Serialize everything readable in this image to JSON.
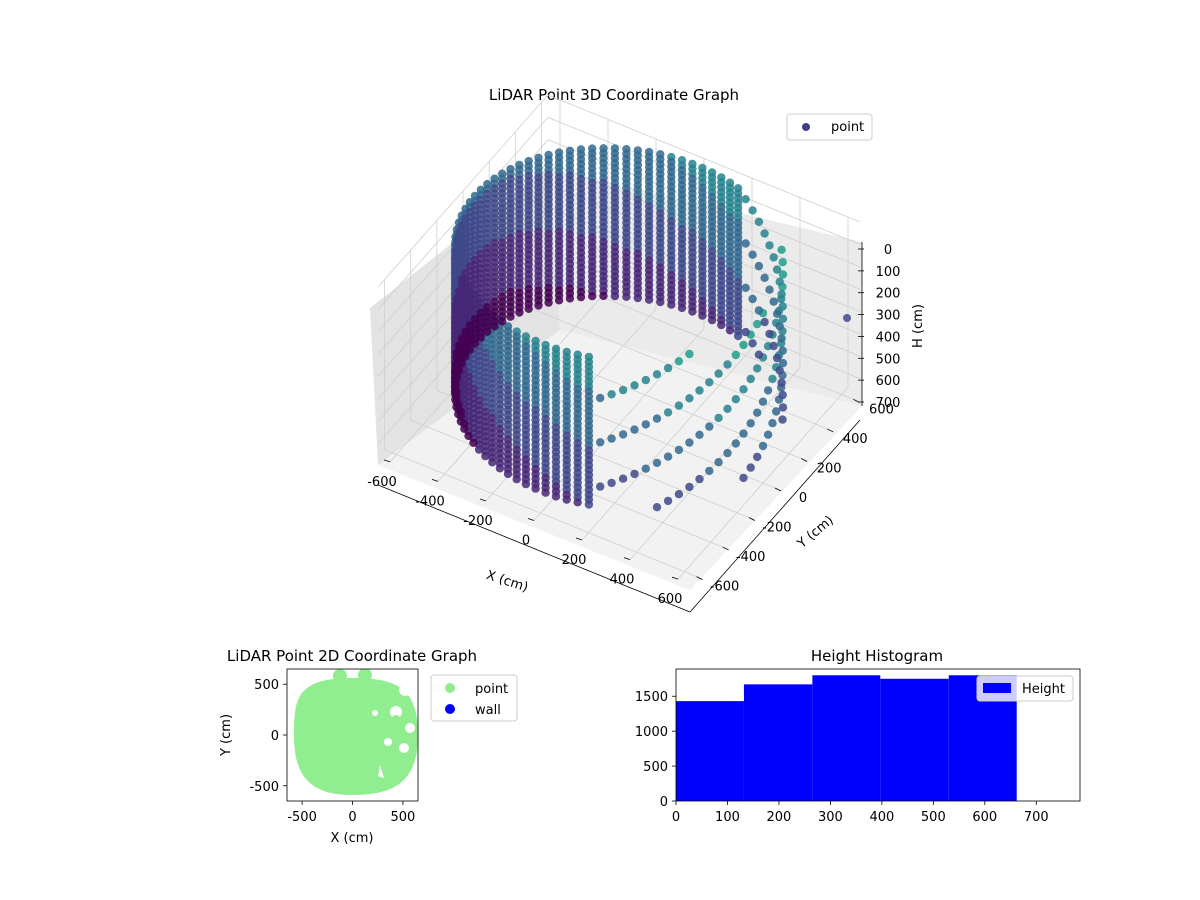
{
  "chart_data": [
    {
      "type": "scatter3d",
      "title": "LiDAR Point 3D Coordinate Graph",
      "xlabel": "X (cm)",
      "ylabel": "Y (cm)",
      "zlabel": "H (cm)",
      "xticks": [
        "-600",
        "-400",
        "-200",
        "0",
        "200",
        "400",
        "600"
      ],
      "yticks": [
        "-600",
        "-400",
        "-200",
        "0",
        "200",
        "400",
        "600"
      ],
      "zticks": [
        "0",
        "100",
        "200",
        "300",
        "400",
        "500",
        "600",
        "700"
      ],
      "xlim": [
        -650,
        650
      ],
      "ylim": [
        -650,
        650
      ],
      "zlim": [
        0,
        760
      ],
      "z_inverted": true,
      "legend": [
        "point"
      ],
      "legend_position": "top-right",
      "colormap": "viridis",
      "grid": true,
      "description_of_data": "cylindrical wall of points radius ~600 cm, heights 0-660 cm, with a gap region on the +X side"
    },
    {
      "type": "scatter",
      "title": "LiDAR Point 2D Coordinate Graph",
      "xlabel": "X (cm)",
      "ylabel": "Y (cm)",
      "xticks": [
        "-500",
        "0",
        "500"
      ],
      "yticks": [
        "500",
        "0",
        "-500"
      ],
      "xlim": [
        -650,
        650
      ],
      "ylim": [
        -650,
        650
      ],
      "series": [
        {
          "name": "point",
          "color": "#90ee90"
        },
        {
          "name": "wall",
          "color": "#0000ff"
        }
      ],
      "legend_position": "outside-right"
    },
    {
      "type": "bar",
      "title": "Height Histogram",
      "bins": [
        {
          "x0": 0,
          "x1": 132,
          "count": 1430
        },
        {
          "x0": 132,
          "x1": 265,
          "count": 1670
        },
        {
          "x0": 265,
          "x1": 397,
          "count": 1800
        },
        {
          "x0": 397,
          "x1": 530,
          "count": 1750
        },
        {
          "x0": 530,
          "x1": 662,
          "count": 1800
        }
      ],
      "xticks": [
        "0",
        "100",
        "200",
        "300",
        "400",
        "500",
        "600",
        "700"
      ],
      "yticks": [
        "0",
        "500",
        "1000",
        "1500"
      ],
      "xlim": [
        0,
        785
      ],
      "ylim": [
        0,
        1890
      ],
      "legend": [
        "Height"
      ],
      "legend_position": "top-right",
      "color": "#0000ff"
    }
  ]
}
